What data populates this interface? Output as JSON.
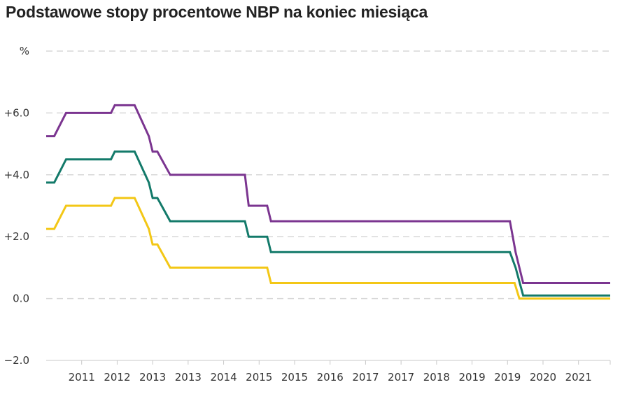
{
  "chart_data": {
    "type": "line",
    "title": "Podstawowe stopy procentowe NBP na koniec miesiąca",
    "ylabel": "%",
    "ylim": [
      -2.0,
      8.0
    ],
    "y_ticks": [
      {
        "value": 8.0,
        "label": "%"
      },
      {
        "value": 6.0,
        "label": "+6.0"
      },
      {
        "value": 4.0,
        "label": "+4.0"
      },
      {
        "value": 2.0,
        "label": "+2.0"
      },
      {
        "value": 0.0,
        "label": "0.0"
      },
      {
        "value": -2.0,
        "label": "−2.0"
      }
    ],
    "xlim": [
      2010.0,
      2021.92
    ],
    "x_ticks": [
      {
        "value": 2010.75,
        "label": "2011"
      },
      {
        "value": 2011.5,
        "label": "2012"
      },
      {
        "value": 2012.25,
        "label": "2013"
      },
      {
        "value": 2013.0,
        "label": "2013"
      },
      {
        "value": 2013.75,
        "label": "2014"
      },
      {
        "value": 2014.5,
        "label": "2015"
      },
      {
        "value": 2015.25,
        "label": "2015"
      },
      {
        "value": 2016.0,
        "label": "2016"
      },
      {
        "value": 2016.75,
        "label": "2017"
      },
      {
        "value": 2017.5,
        "label": "2017"
      },
      {
        "value": 2018.25,
        "label": "2018"
      },
      {
        "value": 2019.0,
        "label": "2019"
      },
      {
        "value": 2019.75,
        "label": "2019"
      },
      {
        "value": 2020.5,
        "label": "2020"
      },
      {
        "value": 2021.25,
        "label": "2021"
      },
      {
        "value": 2021.92,
        "label": ""
      }
    ],
    "grid": true,
    "series": [
      {
        "color": "#7b3590",
        "points": [
          [
            2010.0,
            5.25
          ],
          [
            2010.17,
            5.25
          ],
          [
            2010.42,
            6.0
          ],
          [
            2011.37,
            6.0
          ],
          [
            2011.45,
            6.25
          ],
          [
            2011.87,
            6.25
          ],
          [
            2012.17,
            5.25
          ],
          [
            2012.25,
            4.75
          ],
          [
            2012.35,
            4.75
          ],
          [
            2012.62,
            4.0
          ],
          [
            2014.2,
            4.0
          ],
          [
            2014.28,
            3.0
          ],
          [
            2014.67,
            3.0
          ],
          [
            2014.75,
            2.5
          ],
          [
            2019.8,
            2.5
          ],
          [
            2019.92,
            1.5
          ],
          [
            2020.08,
            0.5
          ],
          [
            2021.92,
            0.5
          ]
        ]
      },
      {
        "color": "#137a6a",
        "points": [
          [
            2010.0,
            3.75
          ],
          [
            2010.17,
            3.75
          ],
          [
            2010.42,
            4.5
          ],
          [
            2011.37,
            4.5
          ],
          [
            2011.45,
            4.75
          ],
          [
            2011.87,
            4.75
          ],
          [
            2012.17,
            3.75
          ],
          [
            2012.25,
            3.25
          ],
          [
            2012.35,
            3.25
          ],
          [
            2012.62,
            2.5
          ],
          [
            2014.2,
            2.5
          ],
          [
            2014.28,
            2.0
          ],
          [
            2014.67,
            2.0
          ],
          [
            2014.75,
            1.5
          ],
          [
            2019.8,
            1.5
          ],
          [
            2019.92,
            1.0
          ],
          [
            2020.08,
            0.1
          ],
          [
            2021.92,
            0.1
          ]
        ]
      },
      {
        "color": "#f3c716",
        "points": [
          [
            2010.0,
            2.25
          ],
          [
            2010.17,
            2.25
          ],
          [
            2010.42,
            3.0
          ],
          [
            2011.37,
            3.0
          ],
          [
            2011.45,
            3.25
          ],
          [
            2011.87,
            3.25
          ],
          [
            2012.17,
            2.25
          ],
          [
            2012.25,
            1.75
          ],
          [
            2012.35,
            1.75
          ],
          [
            2012.62,
            1.0
          ],
          [
            2014.67,
            1.0
          ],
          [
            2014.75,
            0.5
          ],
          [
            2019.9,
            0.5
          ],
          [
            2020.0,
            0.0
          ],
          [
            2021.92,
            0.0
          ]
        ]
      }
    ]
  }
}
